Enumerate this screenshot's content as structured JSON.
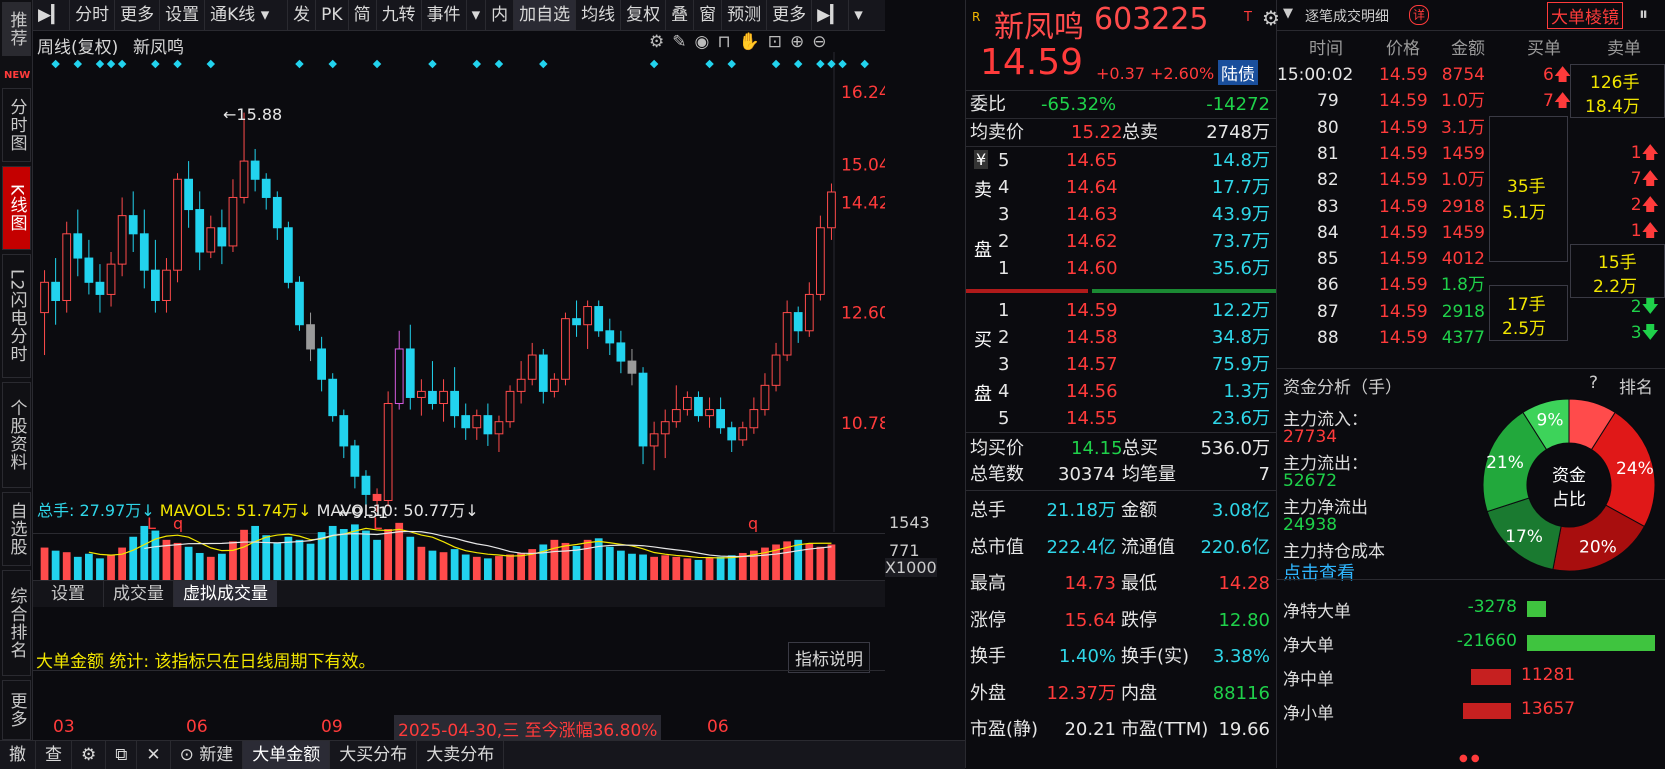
{
  "toolbar": {
    "items": [
      "分时",
      "更多",
      "设置",
      "通K线",
      "发",
      "PK",
      "简",
      "九转",
      "事件",
      "内",
      "加自选",
      "均线",
      "复权",
      "叠",
      "窗",
      "预测",
      "更多"
    ]
  },
  "sidebar": {
    "items": [
      "推荐",
      "NEW",
      "分时图",
      "K线图",
      "L2闪电分时",
      "个股资料",
      "自选股",
      "综合排名",
      "更多"
    ]
  },
  "chart": {
    "title": "周线(复权)",
    "stock_name": "新凤鸣",
    "high_label": "15.88",
    "low_label": "9.31",
    "price_ticks": [
      "16.24",
      "15.04",
      "14.42",
      "12.60",
      "10.78"
    ],
    "markers": [
      "L",
      "q",
      "L",
      "q"
    ],
    "volume_legend": {
      "total": "总手: 27.97万↓",
      "mavol5": "MAVOL5: 51.74万↓",
      "mavol10": "MAVOL10: 50.77万↓"
    },
    "volume_ticks": [
      "1543",
      "771",
      "X1000"
    ],
    "sub_tabs": [
      "设置",
      "成交量",
      "虚拟成交量"
    ],
    "indicator_note": "大单金额 统计: 该指标只在日线周期下有效。",
    "indicator_button": "指标说明",
    "x_ticks": [
      "03",
      "06",
      "09",
      "06"
    ],
    "date_range_note": "2025-04-30,三 至今涨幅36.80%"
  },
  "chart_data": {
    "type": "candlestick",
    "period": "weekly",
    "price_range": [
      9.31,
      16.24
    ],
    "volume_unit": "X1000",
    "candles": [
      {
        "o": 12.6,
        "h": 13.3,
        "l": 11.9,
        "c": 13.1
      },
      {
        "o": 13.1,
        "h": 13.5,
        "l": 12.4,
        "c": 12.8
      },
      {
        "o": 12.8,
        "h": 14.1,
        "l": 12.6,
        "c": 13.9
      },
      {
        "o": 13.9,
        "h": 14.3,
        "l": 13.2,
        "c": 13.5
      },
      {
        "o": 13.5,
        "h": 13.8,
        "l": 12.9,
        "c": 13.1
      },
      {
        "o": 13.1,
        "h": 13.4,
        "l": 12.6,
        "c": 12.9
      },
      {
        "o": 12.9,
        "h": 13.6,
        "l": 12.7,
        "c": 13.4
      },
      {
        "o": 13.4,
        "h": 14.5,
        "l": 13.2,
        "c": 14.2
      },
      {
        "o": 14.2,
        "h": 14.6,
        "l": 13.6,
        "c": 13.9
      },
      {
        "o": 13.9,
        "h": 14.3,
        "l": 13.0,
        "c": 13.3
      },
      {
        "o": 13.3,
        "h": 13.8,
        "l": 12.6,
        "c": 12.8
      },
      {
        "o": 12.8,
        "h": 13.5,
        "l": 12.6,
        "c": 13.3
      },
      {
        "o": 13.3,
        "h": 14.9,
        "l": 13.1,
        "c": 14.8
      },
      {
        "o": 14.8,
        "h": 15.1,
        "l": 14.0,
        "c": 14.3
      },
      {
        "o": 14.3,
        "h": 14.6,
        "l": 13.3,
        "c": 13.6
      },
      {
        "o": 13.6,
        "h": 14.2,
        "l": 13.5,
        "c": 14.0
      },
      {
        "o": 14.0,
        "h": 14.3,
        "l": 13.4,
        "c": 13.7
      },
      {
        "o": 13.7,
        "h": 14.8,
        "l": 13.6,
        "c": 14.5
      },
      {
        "o": 14.5,
        "h": 15.9,
        "l": 14.4,
        "c": 15.1
      },
      {
        "o": 15.1,
        "h": 15.3,
        "l": 14.6,
        "c": 14.8
      },
      {
        "o": 14.8,
        "h": 14.9,
        "l": 14.3,
        "c": 14.5
      },
      {
        "o": 14.5,
        "h": 14.6,
        "l": 13.8,
        "c": 14.0
      },
      {
        "o": 14.0,
        "h": 14.1,
        "l": 13.0,
        "c": 13.1
      },
      {
        "o": 13.1,
        "h": 13.2,
        "l": 12.3,
        "c": 12.4
      },
      {
        "o": 12.4,
        "h": 12.6,
        "l": 11.8,
        "c": 12.0
      },
      {
        "o": 12.0,
        "h": 12.2,
        "l": 11.3,
        "c": 11.5
      },
      {
        "o": 11.5,
        "h": 11.6,
        "l": 10.8,
        "c": 10.9
      },
      {
        "o": 10.9,
        "h": 11.0,
        "l": 10.2,
        "c": 10.4
      },
      {
        "o": 10.4,
        "h": 10.5,
        "l": 9.7,
        "c": 9.9
      },
      {
        "o": 9.9,
        "h": 10.0,
        "l": 9.4,
        "c": 9.6
      },
      {
        "o": 9.6,
        "h": 9.7,
        "l": 9.31,
        "c": 9.5
      },
      {
        "o": 9.5,
        "h": 11.3,
        "l": 9.4,
        "c": 11.1
      },
      {
        "o": 11.1,
        "h": 12.3,
        "l": 11.0,
        "c": 12.0
      },
      {
        "o": 12.0,
        "h": 12.4,
        "l": 11.0,
        "c": 11.2
      },
      {
        "o": 11.2,
        "h": 11.5,
        "l": 10.9,
        "c": 11.3
      },
      {
        "o": 11.3,
        "h": 11.8,
        "l": 11.0,
        "c": 11.1
      },
      {
        "o": 11.1,
        "h": 11.5,
        "l": 10.8,
        "c": 11.3
      },
      {
        "o": 11.3,
        "h": 11.7,
        "l": 10.7,
        "c": 10.9
      },
      {
        "o": 10.9,
        "h": 11.1,
        "l": 10.5,
        "c": 10.7
      },
      {
        "o": 10.7,
        "h": 11.0,
        "l": 10.5,
        "c": 10.9
      },
      {
        "o": 10.9,
        "h": 11.1,
        "l": 10.4,
        "c": 10.6
      },
      {
        "o": 10.6,
        "h": 10.9,
        "l": 10.3,
        "c": 10.8
      },
      {
        "o": 10.8,
        "h": 11.4,
        "l": 10.7,
        "c": 11.3
      },
      {
        "o": 11.3,
        "h": 11.8,
        "l": 11.1,
        "c": 11.5
      },
      {
        "o": 11.5,
        "h": 12.1,
        "l": 11.4,
        "c": 11.9
      },
      {
        "o": 11.9,
        "h": 12.0,
        "l": 11.1,
        "c": 11.3
      },
      {
        "o": 11.3,
        "h": 11.6,
        "l": 11.2,
        "c": 11.5
      },
      {
        "o": 11.5,
        "h": 12.6,
        "l": 11.4,
        "c": 12.5
      },
      {
        "o": 12.5,
        "h": 12.8,
        "l": 12.2,
        "c": 12.4
      },
      {
        "o": 12.4,
        "h": 12.8,
        "l": 12.0,
        "c": 12.7
      },
      {
        "o": 12.7,
        "h": 12.8,
        "l": 12.2,
        "c": 12.3
      },
      {
        "o": 12.3,
        "h": 12.5,
        "l": 11.9,
        "c": 12.1
      },
      {
        "o": 12.1,
        "h": 12.3,
        "l": 11.6,
        "c": 11.8
      },
      {
        "o": 11.8,
        "h": 12.0,
        "l": 11.4,
        "c": 11.6
      },
      {
        "o": 11.6,
        "h": 11.7,
        "l": 10.1,
        "c": 10.4
      },
      {
        "o": 10.4,
        "h": 10.8,
        "l": 10.0,
        "c": 10.6
      },
      {
        "o": 10.6,
        "h": 11.0,
        "l": 10.2,
        "c": 10.8
      },
      {
        "o": 10.8,
        "h": 11.4,
        "l": 10.7,
        "c": 11.0
      },
      {
        "o": 11.0,
        "h": 11.3,
        "l": 10.9,
        "c": 11.2
      },
      {
        "o": 11.2,
        "h": 11.3,
        "l": 10.8,
        "c": 10.9
      },
      {
        "o": 10.9,
        "h": 11.2,
        "l": 10.7,
        "c": 11.0
      },
      {
        "o": 11.0,
        "h": 11.2,
        "l": 10.6,
        "c": 10.7
      },
      {
        "o": 10.7,
        "h": 10.8,
        "l": 10.3,
        "c": 10.5
      },
      {
        "o": 10.5,
        "h": 10.8,
        "l": 10.4,
        "c": 10.7
      },
      {
        "o": 10.7,
        "h": 11.2,
        "l": 10.6,
        "c": 11.0
      },
      {
        "o": 11.0,
        "h": 11.6,
        "l": 10.9,
        "c": 11.4
      },
      {
        "o": 11.4,
        "h": 12.1,
        "l": 11.3,
        "c": 11.9
      },
      {
        "o": 11.9,
        "h": 12.8,
        "l": 11.8,
        "c": 12.6
      },
      {
        "o": 12.6,
        "h": 12.7,
        "l": 12.1,
        "c": 12.3
      },
      {
        "o": 12.3,
        "h": 13.1,
        "l": 12.2,
        "c": 12.9
      },
      {
        "o": 12.9,
        "h": 14.2,
        "l": 12.8,
        "c": 14.0
      },
      {
        "o": 14.0,
        "h": 14.73,
        "l": 13.8,
        "c": 14.59
      }
    ],
    "volumes": [
      420,
      380,
      360,
      300,
      340,
      280,
      330,
      420,
      560,
      700,
      640,
      520,
      480,
      430,
      350,
      300,
      340,
      500,
      650,
      700,
      580,
      480,
      560,
      520,
      470,
      620,
      700,
      660,
      720,
      640,
      520,
      660,
      740,
      560,
      430,
      380,
      360,
      400,
      330,
      300,
      280,
      310,
      330,
      350,
      400,
      460,
      520,
      480,
      440,
      520,
      540,
      430,
      380,
      340,
      330,
      300,
      320,
      300,
      280,
      260,
      290,
      300,
      320,
      350,
      380,
      420,
      460,
      500,
      520,
      470,
      430,
      460
    ]
  },
  "quote": {
    "name": "新凤鸣",
    "code": "603225",
    "price": "14.59",
    "change": "+0.37",
    "change_pct": "+2.60%",
    "tag": "陆债",
    "weibi_label": "委比",
    "weibi_pct": "-65.32%",
    "weibi_val": "-14272",
    "avg_sell_label": "均卖价",
    "avg_sell": "15.22",
    "total_sell_label": "总卖",
    "total_sell": "2748万",
    "sell_side_label": "卖",
    "pan_label": "盘",
    "buy_side_label": "买",
    "sells": [
      {
        "lvl": "5",
        "price": "14.65",
        "vol": "14.8万"
      },
      {
        "lvl": "4",
        "price": "14.64",
        "vol": "17.7万"
      },
      {
        "lvl": "3",
        "price": "14.63",
        "vol": "43.9万"
      },
      {
        "lvl": "2",
        "price": "14.62",
        "vol": "73.7万"
      },
      {
        "lvl": "1",
        "price": "14.60",
        "vol": "35.6万"
      }
    ],
    "buys": [
      {
        "lvl": "1",
        "price": "14.59",
        "vol": "12.2万"
      },
      {
        "lvl": "2",
        "price": "14.58",
        "vol": "34.8万"
      },
      {
        "lvl": "3",
        "price": "14.57",
        "vol": "75.9万"
      },
      {
        "lvl": "4",
        "price": "14.56",
        "vol": "1.3万"
      },
      {
        "lvl": "5",
        "price": "14.55",
        "vol": "23.6万"
      }
    ],
    "avg_buy_label": "均买价",
    "avg_buy": "14.15",
    "total_buy_label": "总买",
    "total_buy": "536.0万",
    "trades_label": "总笔数",
    "trades": "30374",
    "avg_trade_label": "均笔量",
    "avg_trade": "7",
    "stats": [
      {
        "l1": "总手",
        "v1": "21.18万",
        "c1": "cyan",
        "l2": "金额",
        "v2": "3.08亿",
        "c2": "cyan"
      },
      {
        "l1": "总市值",
        "v1": "222.4亿",
        "c1": "cyan",
        "l2": "流通值",
        "v2": "220.6亿",
        "c2": "cyan"
      },
      {
        "l1": "最高",
        "v1": "14.73",
        "c1": "red",
        "l2": "最低",
        "v2": "14.28",
        "c2": "red"
      },
      {
        "l1": "涨停",
        "v1": "15.64",
        "c1": "red",
        "l2": "跌停",
        "v2": "12.80",
        "c2": "green"
      },
      {
        "l1": "换手",
        "v1": "1.40%",
        "c1": "cyan",
        "l2": "换手(实)",
        "v2": "3.38%",
        "c2": "cyan"
      },
      {
        "l1": "外盘",
        "v1": "12.37万",
        "c1": "red",
        "l2": "内盘",
        "v2": "88116",
        "c2": "green"
      },
      {
        "l1": "市盈(静)",
        "v1": "20.21",
        "c1": "white",
        "l2": "市盈(TTM)",
        "v2": "19.66",
        "c2": "white"
      }
    ]
  },
  "trade_detail": {
    "title": "逐笔成交明细",
    "detail_badge": "详",
    "button": "大单棱镜",
    "headers": [
      "时间",
      "价格",
      "金额",
      "买单",
      "卖单"
    ],
    "rows": [
      {
        "time": "15:00:02",
        "price": "14.59",
        "amount": "8754",
        "amount_color": "red",
        "buy": "6",
        "buy_dir": "up"
      },
      {
        "time": "79",
        "price": "14.59",
        "amount": "1.0万",
        "amount_color": "red",
        "buy": "7",
        "buy_dir": "up"
      },
      {
        "time": "80",
        "price": "14.59",
        "amount": "3.1万",
        "amount_color": "red",
        "buy": "",
        "buy_dir": ""
      },
      {
        "time": "81",
        "price": "14.59",
        "amount": "1459",
        "amount_color": "red",
        "buy": "",
        "buy_dir": ""
      },
      {
        "time": "82",
        "price": "14.59",
        "amount": "1.0万",
        "amount_color": "red",
        "buy": "",
        "buy_dir": ""
      },
      {
        "time": "83",
        "price": "14.59",
        "amount": "2918",
        "amount_color": "red",
        "buy": "",
        "buy_dir": ""
      },
      {
        "time": "84",
        "price": "14.59",
        "amount": "1459",
        "amount_color": "red",
        "buy": "",
        "buy_dir": ""
      },
      {
        "time": "85",
        "price": "14.59",
        "amount": "4012",
        "amount_color": "red",
        "buy": "",
        "buy_dir": ""
      },
      {
        "time": "86",
        "price": "14.59",
        "amount": "1.8万",
        "amount_color": "green",
        "buy": "",
        "buy_dir": ""
      },
      {
        "time": "87",
        "price": "14.59",
        "amount": "2918",
        "amount_color": "green",
        "buy": "",
        "buy_dir": ""
      },
      {
        "time": "88",
        "price": "14.59",
        "amount": "4377",
        "amount_color": "green",
        "buy": "",
        "buy_dir": ""
      }
    ],
    "sell_counts": [
      {
        "val": "1",
        "dir": "up"
      },
      {
        "val": "7",
        "dir": "up"
      },
      {
        "val": "2",
        "dir": "up"
      },
      {
        "val": "1",
        "dir": "up"
      },
      {
        "val": "2",
        "dir": "down"
      },
      {
        "val": "3",
        "dir": "down"
      }
    ],
    "block1": {
      "a": "126手",
      "b": "18.4万"
    },
    "block2": {
      "a": "35手",
      "b": "5.1万"
    },
    "block3": {
      "a": "15手",
      "b": "2.2万"
    },
    "block4": {
      "a": "17手",
      "b": "2.5万"
    }
  },
  "fund": {
    "title": "资金分析（手）",
    "help": "?",
    "rank": "排名",
    "inflow_label": "主力流入：",
    "inflow": "27734",
    "outflow_label": "主力流出：",
    "outflow": "52672",
    "net_label": "主力净流出",
    "net": "24938",
    "cost_label": "主力持仓成本",
    "link": "点击查看",
    "donut_center_1": "资金",
    "donut_center_2": "占比",
    "pie": [
      {
        "label": "24%",
        "value": 24,
        "color": "#e01818"
      },
      {
        "label": "20%",
        "value": 20,
        "color": "#a80e0e"
      },
      {
        "label": "17%",
        "value": 17,
        "color": "#1a7a30"
      },
      {
        "label": "21%",
        "value": 21,
        "color": "#22a83c"
      },
      {
        "label": "9%",
        "value": 9,
        "color": "#3dd35a"
      },
      {
        "label": "",
        "value": 9,
        "color": "#ff4b4b"
      }
    ],
    "net_bars": [
      {
        "label": "净特大单",
        "value": "-3278",
        "num": -3278,
        "color": "#3fc43f"
      },
      {
        "label": "净大单",
        "value": "-21660",
        "num": -21660,
        "color": "#3fc43f"
      },
      {
        "label": "净中单",
        "value": "11281",
        "num": 11281,
        "color": "#c62020"
      },
      {
        "label": "净小单",
        "value": "13657",
        "num": 13657,
        "color": "#c62020"
      }
    ]
  },
  "bottom_bar": {
    "items": [
      "撤",
      "查",
      "新建",
      "大单金额",
      "大买分布",
      "大卖分布"
    ]
  }
}
